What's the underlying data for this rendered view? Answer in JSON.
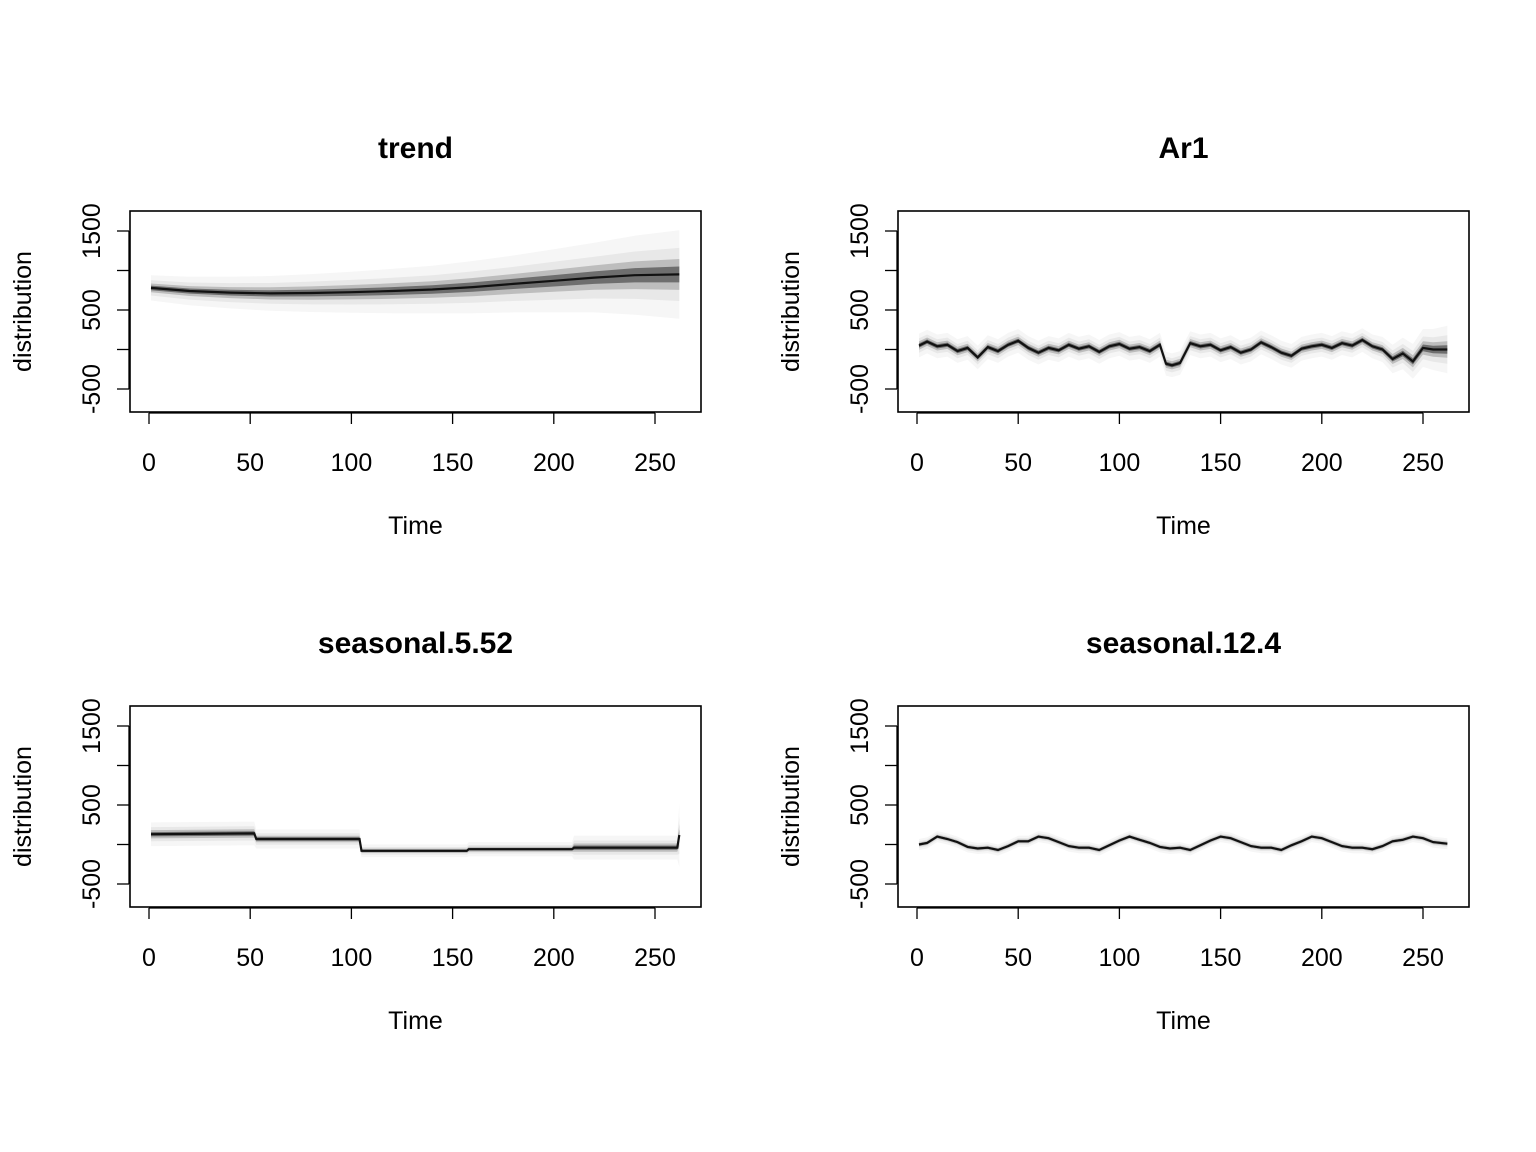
{
  "chart_data": [
    {
      "type": "line",
      "title": "trend",
      "xlabel": "Time",
      "ylabel": "distribution",
      "xlim": [
        0,
        262
      ],
      "ylim": [
        -600,
        2000
      ],
      "xticks": [
        0,
        50,
        100,
        150,
        200,
        250
      ],
      "yticks": [
        -500,
        0,
        500,
        1000,
        1500
      ],
      "ytick_labels": [
        "-500",
        "",
        "500",
        "",
        "1500"
      ],
      "series": [
        {
          "x": [
            1,
            20,
            40,
            60,
            80,
            100,
            120,
            140,
            160,
            180,
            200,
            220,
            240,
            262
          ],
          "values": [
            780,
            740,
            720,
            710,
            715,
            725,
            740,
            760,
            790,
            830,
            870,
            910,
            940,
            950
          ],
          "band_width": [
            160,
            180,
            200,
            220,
            240,
            260,
            280,
            300,
            330,
            360,
            400,
            440,
            500,
            560
          ]
        }
      ]
    },
    {
      "type": "line",
      "title": "Ar1",
      "xlabel": "Time",
      "ylabel": "distribution",
      "xlim": [
        0,
        262
      ],
      "ylim": [
        -600,
        2000
      ],
      "xticks": [
        0,
        50,
        100,
        150,
        200,
        250
      ],
      "yticks": [
        -500,
        0,
        500,
        1000,
        1500
      ],
      "ytick_labels": [
        "-500",
        "",
        "500",
        "",
        "1500"
      ],
      "series": [
        {
          "x": [
            1,
            5,
            10,
            15,
            20,
            25,
            30,
            35,
            40,
            45,
            50,
            55,
            60,
            65,
            70,
            75,
            80,
            85,
            90,
            95,
            100,
            105,
            110,
            115,
            120,
            123,
            126,
            130,
            135,
            140,
            145,
            150,
            155,
            160,
            165,
            170,
            175,
            180,
            185,
            190,
            195,
            200,
            205,
            210,
            215,
            220,
            225,
            230,
            235,
            240,
            245,
            250,
            255,
            262
          ],
          "values": [
            50,
            100,
            40,
            60,
            -20,
            20,
            -100,
            30,
            -20,
            60,
            110,
            20,
            -40,
            20,
            -10,
            60,
            10,
            40,
            -30,
            40,
            70,
            10,
            30,
            -20,
            60,
            -180,
            -200,
            -170,
            80,
            40,
            60,
            -10,
            30,
            -40,
            0,
            90,
            30,
            -40,
            -80,
            10,
            40,
            60,
            20,
            80,
            50,
            120,
            40,
            0,
            -120,
            -50,
            -150,
            20,
            0,
            0
          ],
          "band_width": [
            150,
            150,
            150,
            150,
            150,
            150,
            150,
            150,
            150,
            150,
            150,
            150,
            150,
            150,
            150,
            150,
            150,
            150,
            150,
            150,
            150,
            150,
            150,
            150,
            150,
            150,
            150,
            150,
            150,
            150,
            150,
            150,
            150,
            150,
            150,
            150,
            150,
            150,
            150,
            150,
            150,
            150,
            150,
            150,
            150,
            150,
            150,
            160,
            180,
            200,
            220,
            240,
            260,
            300
          ]
        }
      ]
    },
    {
      "type": "line",
      "title": "seasonal.5.52",
      "xlabel": "Time",
      "ylabel": "distribution",
      "xlim": [
        0,
        262
      ],
      "ylim": [
        -600,
        2000
      ],
      "xticks": [
        0,
        50,
        100,
        150,
        200,
        250
      ],
      "yticks": [
        -500,
        0,
        500,
        1000,
        1500
      ],
      "ytick_labels": [
        "-500",
        "",
        "500",
        "",
        "1500"
      ],
      "series": [
        {
          "x": [
            1,
            52,
            53,
            104,
            105,
            157,
            158,
            209,
            210,
            261,
            262
          ],
          "values": [
            130,
            140,
            70,
            70,
            -80,
            -80,
            -60,
            -60,
            -40,
            -40,
            120
          ],
          "band_width": [
            150,
            150,
            120,
            120,
            80,
            80,
            90,
            90,
            150,
            150,
            400
          ]
        }
      ]
    },
    {
      "type": "line",
      "title": "seasonal.12.4",
      "xlabel": "Time",
      "ylabel": "distribution",
      "xlim": [
        0,
        262
      ],
      "ylim": [
        -600,
        2000
      ],
      "xticks": [
        0,
        50,
        100,
        150,
        200,
        250
      ],
      "yticks": [
        -500,
        0,
        500,
        1000,
        1500
      ],
      "ytick_labels": [
        "-500",
        "",
        "500",
        "",
        "1500"
      ],
      "series": [
        {
          "x": [
            1,
            5,
            10,
            15,
            20,
            25,
            30,
            35,
            40,
            45,
            50,
            55,
            60,
            65,
            70,
            75,
            80,
            85,
            90,
            95,
            100,
            105,
            110,
            115,
            120,
            125,
            130,
            135,
            140,
            145,
            150,
            155,
            160,
            165,
            170,
            175,
            180,
            185,
            190,
            195,
            200,
            205,
            210,
            215,
            220,
            225,
            230,
            235,
            240,
            245,
            250,
            255,
            262
          ],
          "values": [
            0,
            20,
            100,
            70,
            30,
            -30,
            -50,
            -40,
            -70,
            -20,
            40,
            40,
            100,
            80,
            30,
            -20,
            -40,
            -40,
            -70,
            -10,
            50,
            100,
            60,
            20,
            -30,
            -50,
            -40,
            -70,
            -10,
            50,
            100,
            80,
            30,
            -20,
            -40,
            -40,
            -70,
            -10,
            40,
            100,
            80,
            30,
            -20,
            -40,
            -40,
            -60,
            -20,
            40,
            60,
            100,
            80,
            30,
            10
          ],
          "band_width": [
            70,
            70,
            70,
            70,
            70,
            70,
            70,
            70,
            70,
            70,
            70,
            70,
            70,
            70,
            70,
            70,
            70,
            70,
            70,
            70,
            70,
            70,
            70,
            70,
            70,
            70,
            70,
            70,
            70,
            70,
            70,
            70,
            70,
            70,
            70,
            70,
            70,
            70,
            70,
            70,
            70,
            70,
            70,
            70,
            70,
            70,
            70,
            70,
            70,
            70,
            70,
            70,
            70
          ]
        }
      ]
    }
  ]
}
